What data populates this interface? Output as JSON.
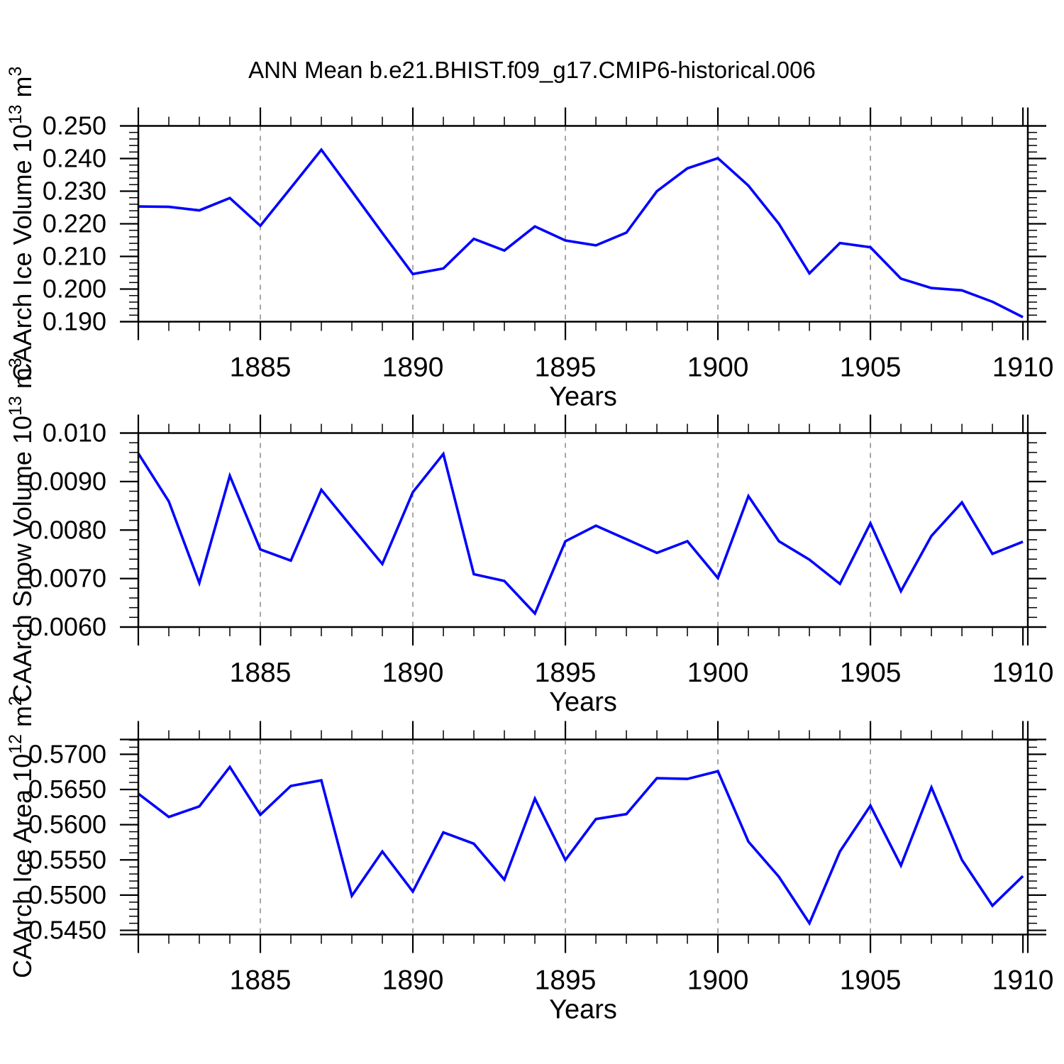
{
  "title": "ANN Mean b.e21.BHIST.f09_g17.CMIP6-historical.006",
  "colors": {
    "line": "#0000ff",
    "axis": "#000000",
    "grid": "#777777",
    "text": "#000000",
    "background": "#ffffff"
  },
  "x_axis": {
    "label": "Years",
    "xlim": [
      1881,
      1910.16
    ],
    "major_ticks": [
      1885,
      1890,
      1895,
      1900,
      1905,
      1910
    ],
    "major_tick_labels": [
      "1885",
      "1890",
      "1895",
      "1900",
      "1905",
      "1910"
    ],
    "minor_step": 1,
    "gridline_years": [
      1885,
      1890,
      1895,
      1900,
      1905
    ]
  },
  "chart_data": [
    {
      "type": "line",
      "panel": "ice-volume",
      "ylabel_parts": [
        {
          "t": "CAArch Ice Volume 10"
        },
        {
          "t": "13",
          "sup": true
        },
        {
          "t": " m"
        },
        {
          "t": "3",
          "sup": true
        }
      ],
      "xlabel": "Years",
      "x": [
        1881,
        1882,
        1883,
        1884,
        1885,
        1886,
        1887,
        1888,
        1889,
        1890,
        1891,
        1892,
        1893,
        1894,
        1895,
        1896,
        1897,
        1898,
        1899,
        1900,
        1901,
        1902,
        1903,
        1904,
        1905,
        1906,
        1907,
        1908,
        1909,
        1910
      ],
      "values": [
        0.2253,
        0.2252,
        0.2241,
        0.2279,
        0.2194,
        0.231,
        0.2427,
        0.23,
        0.2172,
        0.2046,
        0.2063,
        0.2154,
        0.2118,
        0.2192,
        0.2149,
        0.2134,
        0.2173,
        0.23,
        0.237,
        0.2401,
        0.2317,
        0.22,
        0.2048,
        0.2141,
        0.2128,
        0.2032,
        0.2003,
        0.1996,
        0.1961,
        0.1914
      ],
      "ylim": [
        0.19,
        0.25
      ],
      "ytick_values": [
        0.19,
        0.2,
        0.21,
        0.22,
        0.23,
        0.24,
        0.25
      ],
      "ytick_labels": [
        "0.190",
        "0.200",
        "0.210",
        "0.220",
        "0.230",
        "0.240",
        "0.250"
      ],
      "y_minor_step": 0.002
    },
    {
      "type": "line",
      "panel": "snow-volume",
      "ylabel_parts": [
        {
          "t": "CAArch Snow Volume 10"
        },
        {
          "t": "13",
          "sup": true
        },
        {
          "t": " m"
        },
        {
          "t": "3",
          "sup": true
        }
      ],
      "xlabel": "Years",
      "x": [
        1881,
        1882,
        1883,
        1884,
        1885,
        1886,
        1887,
        1888,
        1889,
        1890,
        1891,
        1892,
        1893,
        1894,
        1895,
        1896,
        1897,
        1898,
        1899,
        1900,
        1901,
        1902,
        1903,
        1904,
        1905,
        1906,
        1907,
        1908,
        1909,
        1910
      ],
      "values": [
        0.00958,
        0.00859,
        0.00691,
        0.00912,
        0.0076,
        0.00737,
        0.00883,
        0.00806,
        0.0073,
        0.00878,
        0.00957,
        0.00709,
        0.00695,
        0.00628,
        0.00777,
        0.00809,
        0.00781,
        0.00753,
        0.00777,
        0.00701,
        0.0087,
        0.00777,
        0.00739,
        0.00689,
        0.00814,
        0.00674,
        0.00788,
        0.00857,
        0.00751,
        0.00776
      ],
      "ylim": [
        0.006,
        0.01
      ],
      "ytick_values": [
        0.006,
        0.007,
        0.008,
        0.009,
        0.01
      ],
      "ytick_labels": [
        "0.0060",
        "0.0070",
        "0.0080",
        "0.0090",
        "0.010"
      ],
      "y_minor_step": 0.0002
    },
    {
      "type": "line",
      "panel": "ice-area",
      "ylabel_parts": [
        {
          "t": "CAArch Ice Area 10"
        },
        {
          "t": "12",
          "sup": true
        },
        {
          "t": " m"
        },
        {
          "t": "2",
          "sup": true
        }
      ],
      "xlabel": "Years",
      "x": [
        1881,
        1882,
        1883,
        1884,
        1885,
        1886,
        1887,
        1888,
        1889,
        1890,
        1891,
        1892,
        1893,
        1894,
        1895,
        1896,
        1897,
        1898,
        1899,
        1900,
        1901,
        1902,
        1903,
        1904,
        1905,
        1906,
        1907,
        1908,
        1909,
        1910
      ],
      "values": [
        0.5644,
        0.5611,
        0.5626,
        0.5682,
        0.5614,
        0.5655,
        0.5663,
        0.5499,
        0.5562,
        0.5505,
        0.5589,
        0.5573,
        0.5522,
        0.5637,
        0.555,
        0.5608,
        0.5615,
        0.5666,
        0.5665,
        0.5676,
        0.5576,
        0.5526,
        0.546,
        0.5562,
        0.5627,
        0.5542,
        0.5653,
        0.555,
        0.5485,
        0.5527
      ],
      "ylim": [
        0.5444,
        0.5721
      ],
      "ytick_values": [
        0.545,
        0.55,
        0.555,
        0.56,
        0.565,
        0.57
      ],
      "ytick_labels": [
        "0.5450",
        "0.5500",
        "0.5550",
        "0.5600",
        "0.5650",
        "0.5700"
      ],
      "y_minor_step": 0.001
    }
  ]
}
